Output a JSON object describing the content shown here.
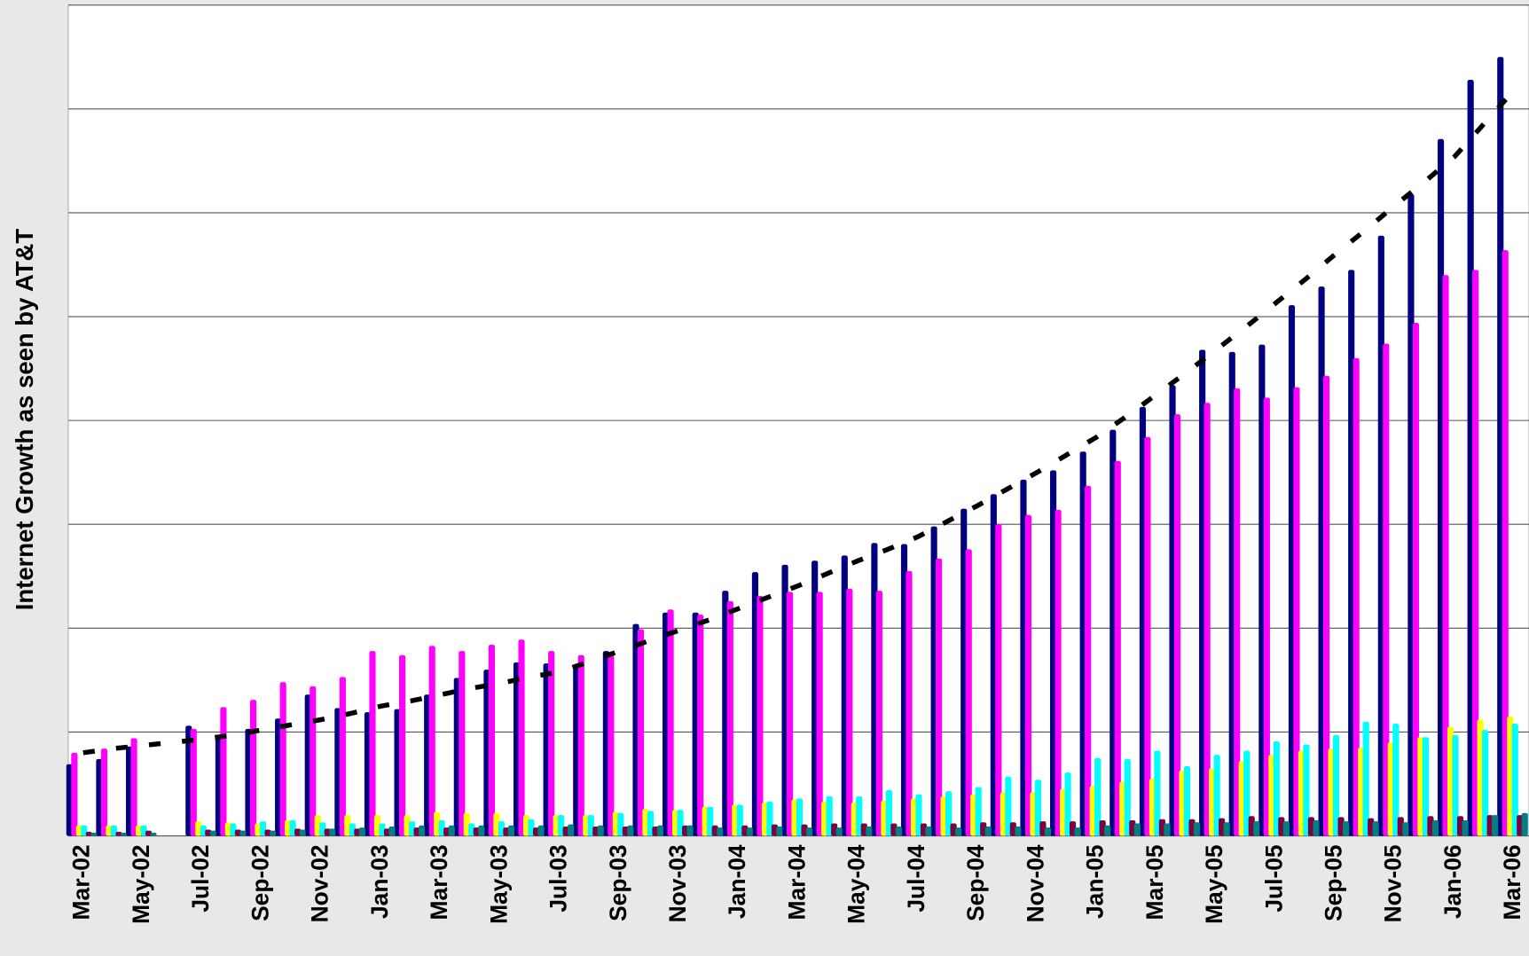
{
  "chart_data": {
    "type": "bar",
    "y_label": "Internet Growth as seen by AT&T",
    "categories": [
      "Mar-02",
      null,
      "May-02",
      null,
      "Jul-02",
      null,
      "Sep-02",
      null,
      "Nov-02",
      null,
      "Jan-03",
      null,
      "Mar-03",
      null,
      "May-03",
      null,
      "Jul-03",
      null,
      "Sep-03",
      null,
      "Nov-03",
      null,
      "Jan-04",
      null,
      "Mar-04",
      null,
      "May-04",
      null,
      "Jul-04",
      null,
      "Sep-04",
      null,
      "Nov-04",
      null,
      "Jan-05",
      null,
      "Mar-05",
      null,
      "May-05",
      null,
      "Jul-05",
      null,
      "Sep-05",
      null,
      "Nov-05",
      null,
      "Jan-06",
      null,
      "Mar-06"
    ],
    "ylim": [
      0,
      8
    ],
    "yticks": [
      0,
      1,
      2,
      3,
      4,
      5,
      6,
      7,
      8
    ],
    "grid": true,
    "series": [
      {
        "color": "#000080",
        "values": [
          0.69,
          0.74,
          0.86,
          null,
          1.06,
          0.96,
          1.03,
          1.13,
          1.36,
          1.23,
          1.19,
          1.22,
          1.36,
          1.52,
          1.6,
          1.67,
          1.66,
          1.63,
          1.78,
          2.04,
          2.15,
          2.15,
          2.36,
          2.54,
          2.61,
          2.65,
          2.7,
          2.82,
          2.81,
          2.98,
          3.15,
          3.29,
          3.43,
          3.52,
          3.7,
          3.91,
          4.13,
          4.34,
          4.68,
          4.66,
          4.73,
          5.11,
          5.29,
          5.45,
          5.78,
          6.18,
          6.71,
          7.28,
          7.5
        ]
      },
      {
        "color": "#ff00ff",
        "values": [
          0.8,
          0.84,
          0.94,
          null,
          1.03,
          1.24,
          1.31,
          1.48,
          1.44,
          1.53,
          1.78,
          1.74,
          1.83,
          1.78,
          1.84,
          1.89,
          1.78,
          1.74,
          1.74,
          1.99,
          2.18,
          2.13,
          2.26,
          2.31,
          2.35,
          2.35,
          2.38,
          2.36,
          2.55,
          2.67,
          2.76,
          3.0,
          3.09,
          3.14,
          3.37,
          3.61,
          3.84,
          4.06,
          4.17,
          4.31,
          4.22,
          4.32,
          4.43,
          4.6,
          4.74,
          4.94,
          5.4,
          5.45,
          5.64
        ]
      },
      {
        "color": "#ffff00",
        "values": [
          0.1,
          0.1,
          0.1,
          null,
          0.14,
          0.13,
          0.12,
          0.15,
          0.2,
          0.2,
          0.2,
          0.2,
          0.23,
          0.22,
          0.22,
          0.2,
          0.2,
          0.2,
          0.23,
          0.26,
          0.25,
          0.28,
          0.3,
          0.32,
          0.35,
          0.33,
          0.32,
          0.34,
          0.36,
          0.38,
          0.4,
          0.42,
          0.42,
          0.45,
          0.48,
          0.52,
          0.55,
          0.63,
          0.65,
          0.72,
          0.78,
          0.82,
          0.84,
          0.85,
          0.9,
          0.95,
          1.05,
          1.12,
          1.15
        ]
      },
      {
        "color": "#00ffff",
        "values": [
          0.1,
          0.1,
          0.1,
          null,
          0.1,
          0.12,
          0.14,
          0.15,
          0.13,
          0.12,
          0.12,
          0.14,
          0.15,
          0.12,
          0.14,
          0.16,
          0.2,
          0.2,
          0.22,
          0.24,
          0.25,
          0.28,
          0.3,
          0.33,
          0.36,
          0.38,
          0.38,
          0.44,
          0.4,
          0.43,
          0.47,
          0.57,
          0.54,
          0.61,
          0.75,
          0.74,
          0.82,
          0.67,
          0.78,
          0.82,
          0.91,
          0.88,
          0.97,
          1.1,
          1.08,
          0.95,
          0.97,
          1.02,
          1.08
        ]
      },
      {
        "color": "#800040",
        "values": [
          0.04,
          0.04,
          0.05,
          null,
          0.06,
          0.06,
          0.06,
          0.07,
          0.07,
          0.07,
          0.07,
          0.08,
          0.08,
          0.08,
          0.08,
          0.08,
          0.09,
          0.09,
          0.09,
          0.09,
          0.1,
          0.1,
          0.1,
          0.11,
          0.11,
          0.12,
          0.12,
          0.12,
          0.12,
          0.12,
          0.13,
          0.13,
          0.14,
          0.14,
          0.15,
          0.15,
          0.16,
          0.16,
          0.17,
          0.19,
          0.18,
          0.18,
          0.18,
          0.17,
          0.18,
          0.19,
          0.19,
          0.2,
          0.2
        ]
      },
      {
        "color": "#008080",
        "values": [
          0.03,
          0.03,
          0.03,
          null,
          0.05,
          0.05,
          0.05,
          0.06,
          0.07,
          0.08,
          0.09,
          0.1,
          0.1,
          0.1,
          0.1,
          0.1,
          0.11,
          0.1,
          0.1,
          0.1,
          0.1,
          0.08,
          0.08,
          0.09,
          0.08,
          0.08,
          0.09,
          0.09,
          0.09,
          0.08,
          0.09,
          0.09,
          0.08,
          0.08,
          0.1,
          0.12,
          0.12,
          0.13,
          0.13,
          0.14,
          0.14,
          0.15,
          0.14,
          0.14,
          0.13,
          0.15,
          0.15,
          0.2,
          0.22
        ]
      },
      {
        "type": "line",
        "dash": true,
        "color": "#000000",
        "values": [
          0.8,
          0.84,
          0.87,
          0.9,
          0.93,
          0.97,
          1.02,
          1.07,
          1.12,
          1.18,
          1.25,
          1.3,
          1.36,
          1.42,
          1.47,
          1.53,
          1.58,
          1.68,
          1.78,
          1.88,
          1.98,
          2.08,
          2.19,
          2.3,
          2.41,
          2.53,
          2.65,
          2.76,
          2.88,
          3.03,
          3.18,
          3.34,
          3.5,
          3.67,
          3.84,
          4.04,
          4.25,
          4.46,
          4.68,
          4.9,
          5.13,
          5.36,
          5.6,
          5.83,
          6.07,
          6.3,
          6.54,
          6.86,
          7.18
        ]
      }
    ]
  }
}
